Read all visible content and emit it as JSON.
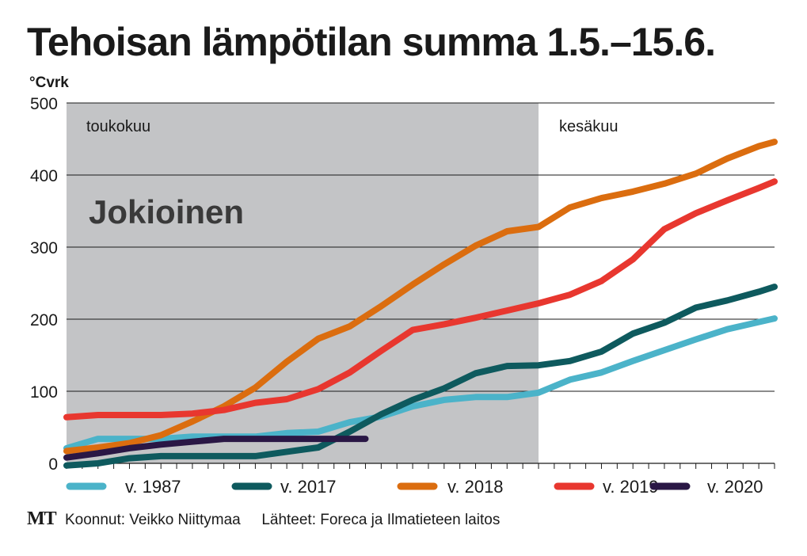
{
  "title": "Tehoisan lämpötilan summa 1.5.–15.6.",
  "unit": "°Cvrk",
  "chart_data": {
    "type": "line",
    "title": "Tehoisan lämpötilan summa 1.5.–15.6.",
    "ylabel": "°Cvrk",
    "xlabel": "",
    "ylim": [
      0,
      500
    ],
    "xlim": [
      1,
      46
    ],
    "yticks": [
      0,
      100,
      200,
      300,
      400,
      500
    ],
    "grid": true,
    "legend_position": "bottom",
    "shaded_region": {
      "from_day": 1,
      "to_day": 31,
      "label": "toukokuu"
    },
    "region_labels": [
      "toukokuu",
      "kesäkuu"
    ],
    "annotation": "Jokioinen",
    "series": [
      {
        "name": "v. 1987",
        "color": "#4bb3c9",
        "x": [
          1,
          3,
          5,
          7,
          9,
          11,
          13,
          15,
          17,
          19,
          21,
          23,
          25,
          27,
          29,
          31,
          33,
          35,
          37,
          39,
          41,
          43,
          45,
          46
        ],
        "values": [
          21,
          34,
          34,
          34,
          37,
          37,
          37,
          42,
          44,
          57,
          65,
          79,
          88,
          92,
          92,
          98,
          116,
          126,
          142,
          157,
          172,
          186,
          196,
          201
        ]
      },
      {
        "name": "v. 2017",
        "color": "#0e5a5e",
        "x": [
          1,
          3,
          5,
          7,
          9,
          11,
          13,
          15,
          17,
          19,
          21,
          23,
          25,
          27,
          29,
          31,
          33,
          35,
          37,
          39,
          41,
          43,
          45,
          46
        ],
        "values": [
          -3,
          0,
          7,
          10,
          10,
          10,
          10,
          16,
          22,
          44,
          68,
          88,
          104,
          125,
          135,
          136,
          142,
          155,
          180,
          195,
          216,
          226,
          238,
          245
        ]
      },
      {
        "name": "v. 2018",
        "color": "#db6d0f",
        "x": [
          1,
          3,
          5,
          7,
          9,
          11,
          13,
          15,
          17,
          19,
          21,
          23,
          25,
          27,
          29,
          31,
          33,
          35,
          37,
          39,
          41,
          43,
          45,
          46
        ],
        "values": [
          17,
          22,
          28,
          39,
          58,
          79,
          105,
          141,
          173,
          190,
          218,
          248,
          276,
          302,
          322,
          328,
          355,
          368,
          377,
          388,
          402,
          423,
          440,
          446
        ]
      },
      {
        "name": "v. 2019",
        "color": "#e8372f",
        "x": [
          1,
          3,
          5,
          7,
          9,
          11,
          13,
          15,
          17,
          19,
          21,
          23,
          25,
          27,
          29,
          31,
          33,
          35,
          37,
          39,
          41,
          43,
          45,
          46
        ],
        "values": [
          64,
          67,
          67,
          67,
          69,
          74,
          84,
          89,
          103,
          126,
          156,
          185,
          193,
          202,
          212,
          222,
          234,
          253,
          283,
          325,
          347,
          365,
          382,
          391
        ]
      },
      {
        "name": "v. 2020",
        "color": "#2a1745",
        "x": [
          1,
          3,
          5,
          7,
          9,
          11,
          13,
          15,
          17,
          19,
          20
        ],
        "values": [
          8,
          14,
          21,
          26,
          30,
          34,
          34,
          34,
          34,
          34,
          34
        ]
      }
    ]
  },
  "footer": {
    "logo": "MT",
    "compiled_by": "Koonnut: Veikko Niittymaa",
    "sources": "Lähteet: Foreca ja Ilmatieteen laitos"
  }
}
